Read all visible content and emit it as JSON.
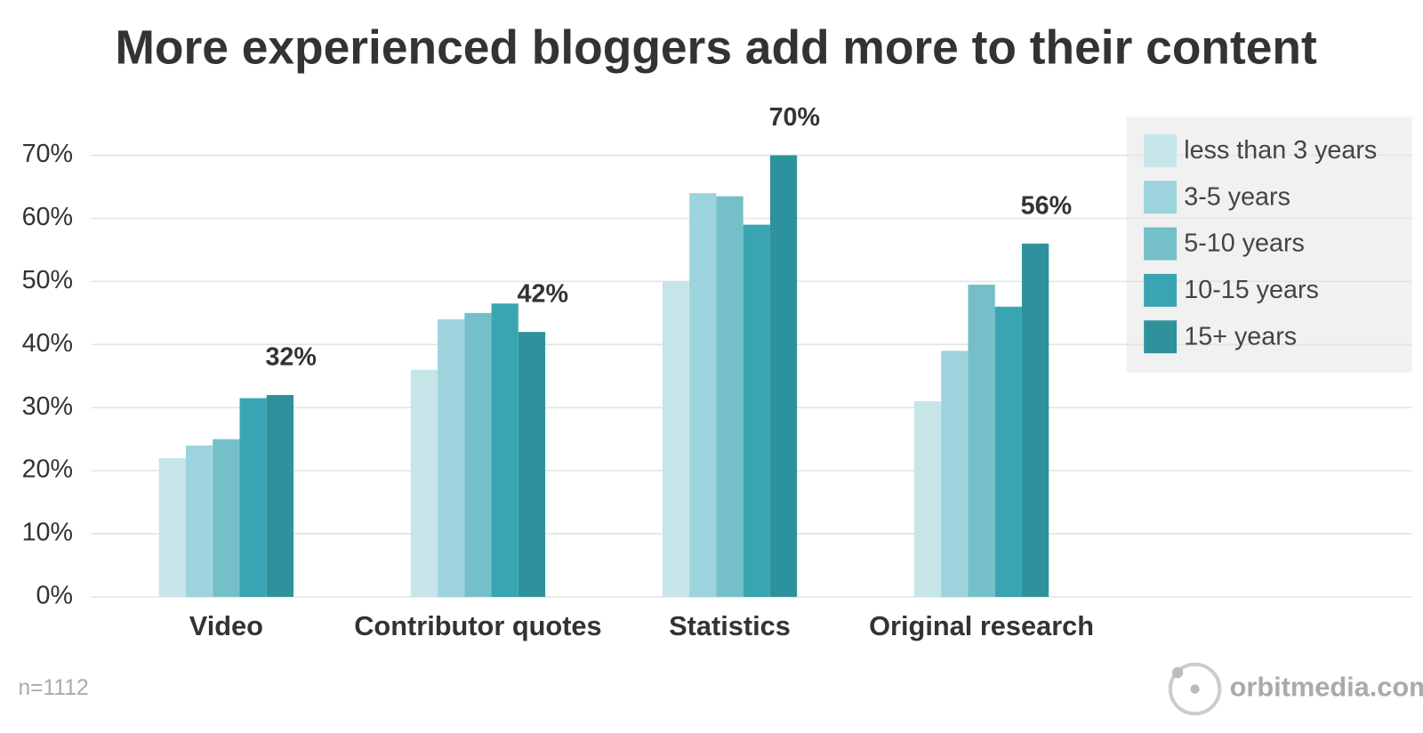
{
  "chart_data": {
    "type": "bar",
    "title": "More experienced bloggers add more to their content",
    "categories": [
      "Video",
      "Contributor quotes",
      "Statistics",
      "Original research"
    ],
    "series": [
      {
        "name": "less than 3 years",
        "color": "#c5e5e9",
        "values": [
          22,
          36,
          50,
          31
        ]
      },
      {
        "name": "3-5 years",
        "color": "#9dd3dc",
        "values": [
          24,
          44,
          64,
          39
        ]
      },
      {
        "name": "5-10 years",
        "color": "#74bfc8",
        "values": [
          25,
          45,
          63.5,
          49.5
        ]
      },
      {
        "name": "10-15 years",
        "color": "#3aa5b2",
        "values": [
          31.5,
          46.5,
          59,
          46
        ]
      },
      {
        "name": "15+ years",
        "color": "#2e929c",
        "values": [
          32,
          42,
          70,
          56
        ],
        "value_labels": [
          "32%",
          "42%",
          "70%",
          "56%"
        ]
      }
    ],
    "ylim": [
      0,
      70
    ],
    "yticks": [
      {
        "value": 0,
        "label": "0%"
      },
      {
        "value": 10,
        "label": "10%"
      },
      {
        "value": 20,
        "label": "20%"
      },
      {
        "value": 30,
        "label": "30%"
      },
      {
        "value": 40,
        "label": "40%"
      },
      {
        "value": 50,
        "label": "50%"
      },
      {
        "value": 60,
        "label": "60%"
      },
      {
        "value": 70,
        "label": "70%"
      }
    ],
    "grid": true,
    "legend": "upper right",
    "note": "n=1112",
    "source": "orbitmedia.com"
  }
}
